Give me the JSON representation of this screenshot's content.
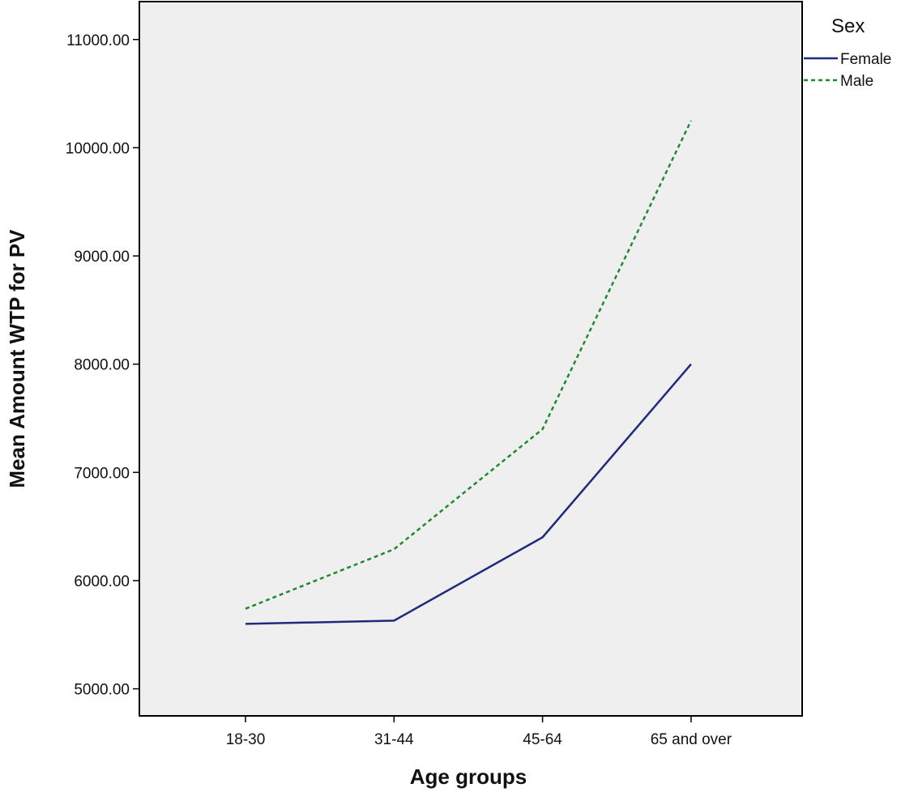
{
  "chart_data": {
    "type": "line",
    "xlabel": "Age groups",
    "ylabel": "Mean Amount WTP for PV",
    "categories": [
      "18-30",
      "31-44",
      "45-64",
      "65 and over"
    ],
    "y_ticks": [
      "5000.00",
      "6000.00",
      "7000.00",
      "8000.00",
      "9000.00",
      "10000.00",
      "11000.00"
    ],
    "ylim": [
      4750,
      11350
    ],
    "grid": false,
    "legend": {
      "title": "Sex",
      "position": "top-right"
    },
    "series": [
      {
        "name": "Female",
        "values": [
          5600,
          5630,
          6400,
          8000
        ],
        "color": "#1f2a7a",
        "style": "solid"
      },
      {
        "name": "Male",
        "values": [
          5740,
          6290,
          7400,
          10250
        ],
        "color": "#1e8a2e",
        "style": "dashed"
      }
    ],
    "plot_background": "#efefef"
  }
}
